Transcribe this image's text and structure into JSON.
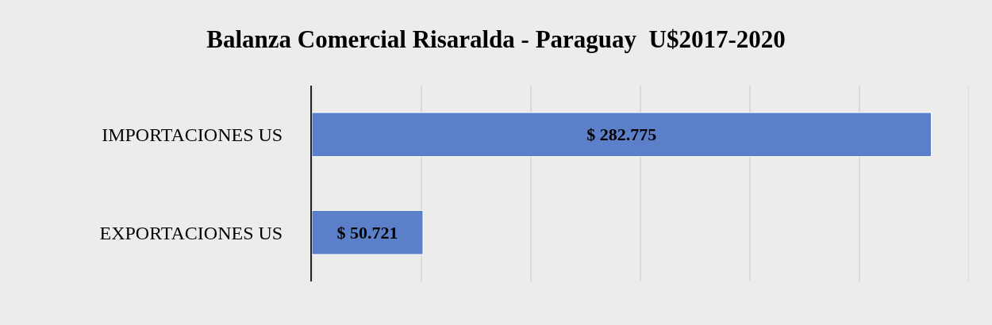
{
  "chart_data": {
    "type": "bar",
    "orientation": "horizontal",
    "title": "Balanza Comercial Risaralda - Paraguay  U$2017-2020",
    "categories": [
      "IMPORTACIONES US",
      "EXPORTACIONES US"
    ],
    "values": [
      282775,
      50721
    ],
    "value_labels": [
      "$ 282.775",
      "$ 50.721"
    ],
    "color": "#5b80c9",
    "xlim": [
      0,
      300000
    ],
    "xticks": [
      {
        "value": 0,
        "label": null
      },
      {
        "value": 50000,
        "label": null
      },
      {
        "value": 100000,
        "label": null
      },
      {
        "value": 150000,
        "label": null
      },
      {
        "value": 200000,
        "label": null
      },
      {
        "value": 250000,
        "label": null
      },
      {
        "value": 300000,
        "label": null
      }
    ],
    "grid": "x",
    "legend": false
  }
}
